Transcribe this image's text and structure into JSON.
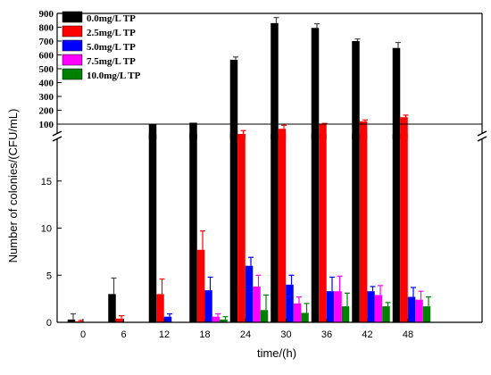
{
  "chart_data": {
    "type": "bar",
    "title": "",
    "xlabel": "time/(h)",
    "ylabel": "Number of colonies/(CFU/mL)",
    "categories": [
      "0",
      "6",
      "12",
      "18",
      "24",
      "30",
      "36",
      "42",
      "48"
    ],
    "axis_break": true,
    "ylim_lower": [
      0,
      20
    ],
    "ylim_upper": [
      0,
      900
    ],
    "yticks_lower": [
      "0",
      "5",
      "10",
      "15"
    ],
    "yticks_upper": [
      "100",
      "200",
      "300",
      "400",
      "500",
      "600",
      "700",
      "800",
      "900"
    ],
    "reference_line": 100,
    "legend_position": "top-left",
    "grid": false,
    "series": [
      {
        "name": "0.0mg/L TP",
        "color": "#000000",
        "values": [
          0.3,
          3.0,
          100,
          110,
          565,
          830,
          795,
          700,
          650
        ],
        "errors": [
          0.6,
          1.7,
          0,
          0,
          20,
          40,
          30,
          15,
          40
        ]
      },
      {
        "name": "2.5mg/L TP",
        "color": "#ff0000",
        "values": [
          0.1,
          0.4,
          3.0,
          7.7,
          25,
          65,
          100,
          120,
          150
        ],
        "errors": [
          0.1,
          0.3,
          1.6,
          2.0,
          3,
          3,
          5,
          10,
          15
        ]
      },
      {
        "name": "5.0mg/L TP",
        "color": "#0000ff",
        "values": [
          0,
          0,
          0.6,
          3.4,
          6.0,
          4.0,
          3.3,
          3.3,
          2.7
        ],
        "errors": [
          0,
          0,
          0.3,
          1.4,
          0.9,
          1.0,
          1.5,
          0.5,
          1.0
        ]
      },
      {
        "name": "7.5mg/L TP",
        "color": "#ff00ff",
        "values": [
          0,
          0,
          0,
          0.6,
          3.8,
          2.0,
          3.3,
          2.9,
          2.4
        ],
        "errors": [
          0,
          0,
          0,
          0.3,
          1.2,
          0.7,
          1.6,
          1.0,
          0.9
        ]
      },
      {
        "name": "10.0mg/L TP",
        "color": "#008000",
        "values": [
          0,
          0,
          0,
          0.3,
          1.3,
          1.0,
          1.7,
          1.7,
          1.7
        ],
        "errors": [
          0,
          0,
          0,
          0.3,
          1.6,
          1.0,
          1.4,
          0.4,
          1.0
        ]
      }
    ]
  }
}
